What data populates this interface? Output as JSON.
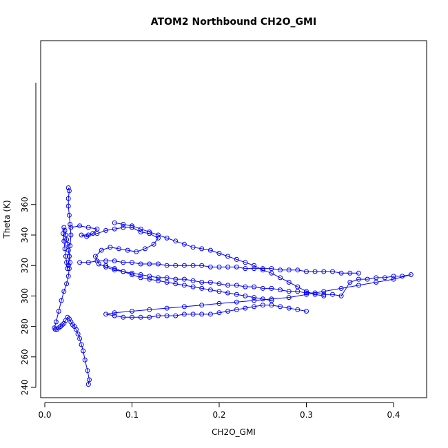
{
  "chart_data": {
    "type": "line",
    "title": "ATOM2 Northbound CH2O_GMI",
    "xlabel": "CH2O_GMI",
    "ylabel": "Theta (K)",
    "xlim": [
      0.0,
      0.42
    ],
    "ylim": [
      240,
      372
    ],
    "xticks": [
      0.0,
      0.1,
      0.2,
      0.3,
      0.4
    ],
    "xtick_labels": [
      "0.0",
      "0.1",
      "0.2",
      "0.3",
      "0.4"
    ],
    "yticks": [
      240,
      260,
      280,
      300,
      320,
      340,
      360
    ],
    "ytick_labels": [
      "240",
      "260",
      "280",
      "300",
      "320",
      "340",
      "360"
    ],
    "grid": false,
    "color": "#0000ff",
    "marker": "open-circle",
    "series": [
      {
        "x": [
          0.05,
          0.051,
          0.049,
          0.046,
          0.044,
          0.042,
          0.04,
          0.038,
          0.036,
          0.034,
          0.032,
          0.03,
          0.028,
          0.026,
          0.024,
          0.022,
          0.02,
          0.018,
          0.016,
          0.014,
          0.012,
          0.011,
          0.013,
          0.016,
          0.019,
          0.022,
          0.025,
          0.027,
          0.028,
          0.029,
          0.028,
          0.027,
          0.026,
          0.025,
          0.024,
          0.023,
          0.022,
          0.021,
          0.022,
          0.023,
          0.024,
          0.025,
          0.026,
          0.027,
          0.028,
          0.029,
          0.03,
          0.029,
          0.028,
          0.027,
          0.027,
          0.028,
          0.027
        ],
        "y": [
          242,
          245,
          251,
          258,
          264,
          268,
          272,
          275,
          278,
          280,
          281,
          283,
          285,
          286,
          284,
          282,
          281,
          280,
          279,
          278,
          278,
          279,
          283,
          290,
          297,
          303,
          308,
          313,
          318,
          322,
          326,
          330,
          334,
          337,
          340,
          343,
          345,
          341,
          336,
          331,
          326,
          322,
          318,
          320,
          326,
          333,
          340,
          347,
          353,
          359,
          364,
          369,
          371
        ]
      },
      {
        "x": [
          0.03,
          0.04,
          0.05,
          0.06,
          0.055,
          0.048,
          0.042,
          0.05,
          0.06,
          0.07,
          0.08,
          0.09,
          0.1,
          0.11,
          0.12,
          0.13,
          0.125,
          0.115,
          0.105,
          0.095,
          0.085,
          0.075,
          0.065,
          0.058,
          0.062,
          0.07,
          0.08,
          0.09,
          0.1,
          0.11,
          0.12,
          0.13,
          0.14,
          0.15,
          0.16,
          0.17,
          0.18,
          0.19,
          0.2,
          0.21,
          0.22,
          0.23,
          0.24,
          0.25,
          0.26,
          0.27,
          0.28,
          0.29,
          0.3,
          0.31,
          0.32,
          0.33,
          0.34,
          0.35,
          0.36,
          0.37,
          0.38,
          0.39,
          0.4,
          0.41,
          0.42,
          0.4,
          0.38,
          0.36,
          0.34,
          0.32,
          0.3,
          0.28,
          0.26,
          0.24,
          0.22,
          0.2,
          0.18,
          0.16,
          0.14,
          0.12,
          0.1,
          0.08,
          0.07,
          0.08,
          0.09,
          0.1,
          0.11,
          0.12,
          0.13,
          0.14,
          0.15,
          0.16,
          0.17,
          0.18,
          0.19,
          0.2,
          0.21,
          0.22,
          0.23,
          0.24,
          0.25,
          0.26,
          0.27,
          0.28,
          0.29,
          0.3
        ],
        "y": [
          345,
          346,
          345,
          344,
          341,
          339,
          340,
          340,
          341,
          343,
          344,
          345,
          345,
          342,
          341,
          338,
          334,
          331,
          329,
          330,
          331,
          332,
          330,
          326,
          321,
          319,
          317,
          316,
          315,
          314,
          313,
          312,
          312,
          311,
          311,
          310,
          309,
          309,
          308,
          307,
          307,
          306,
          306,
          305,
          305,
          304,
          303,
          303,
          302,
          302,
          301,
          301,
          300,
          309,
          311,
          311,
          312,
          312,
          313,
          313,
          314,
          311,
          309,
          307,
          305,
          303,
          301,
          299,
          298,
          297,
          296,
          295,
          294,
          293,
          292,
          291,
          290,
          289,
          288,
          287,
          286,
          286,
          286,
          286,
          287,
          287,
          287,
          288,
          288,
          288,
          288,
          289,
          290,
          291,
          292,
          293,
          294,
          294,
          293,
          292,
          291,
          290
        ]
      },
      {
        "x": [
          0.04,
          0.05,
          0.06,
          0.07,
          0.08,
          0.09,
          0.1,
          0.11,
          0.12,
          0.13,
          0.14,
          0.15,
          0.16,
          0.17,
          0.18,
          0.19,
          0.2,
          0.21,
          0.22,
          0.23,
          0.24,
          0.25,
          0.26,
          0.27,
          0.28,
          0.29,
          0.3,
          0.31,
          0.32,
          0.33,
          0.34,
          0.35,
          0.36
        ],
        "y": [
          322,
          322,
          323,
          323,
          323,
          322,
          322,
          321,
          321,
          321,
          320,
          320,
          320,
          320,
          320,
          319,
          319,
          319,
          319,
          318,
          318,
          318,
          318,
          317,
          317,
          317,
          316,
          316,
          316,
          316,
          315,
          315,
          315
        ]
      },
      {
        "x": [
          0.08,
          0.09,
          0.1,
          0.11,
          0.12,
          0.13,
          0.14,
          0.15,
          0.16,
          0.17,
          0.18,
          0.19,
          0.2,
          0.21,
          0.22,
          0.23,
          0.24,
          0.25,
          0.26,
          0.27,
          0.28,
          0.29,
          0.3,
          0.31,
          0.32
        ],
        "y": [
          348,
          347,
          346,
          344,
          342,
          340,
          338,
          336,
          334,
          332,
          331,
          330,
          328,
          326,
          324,
          322,
          320,
          317,
          315,
          312,
          309,
          306,
          303,
          301,
          300
        ]
      },
      {
        "x": [
          0.07,
          0.08,
          0.09,
          0.1,
          0.11,
          0.12,
          0.13,
          0.14,
          0.15,
          0.16,
          0.17,
          0.18,
          0.19,
          0.2,
          0.21,
          0.22,
          0.23,
          0.24,
          0.25,
          0.26
        ],
        "y": [
          320,
          318,
          316,
          314,
          312,
          311,
          310,
          309,
          308,
          307,
          306,
          305,
          304,
          303,
          302,
          301,
          300,
          299,
          298,
          297
        ]
      }
    ]
  }
}
